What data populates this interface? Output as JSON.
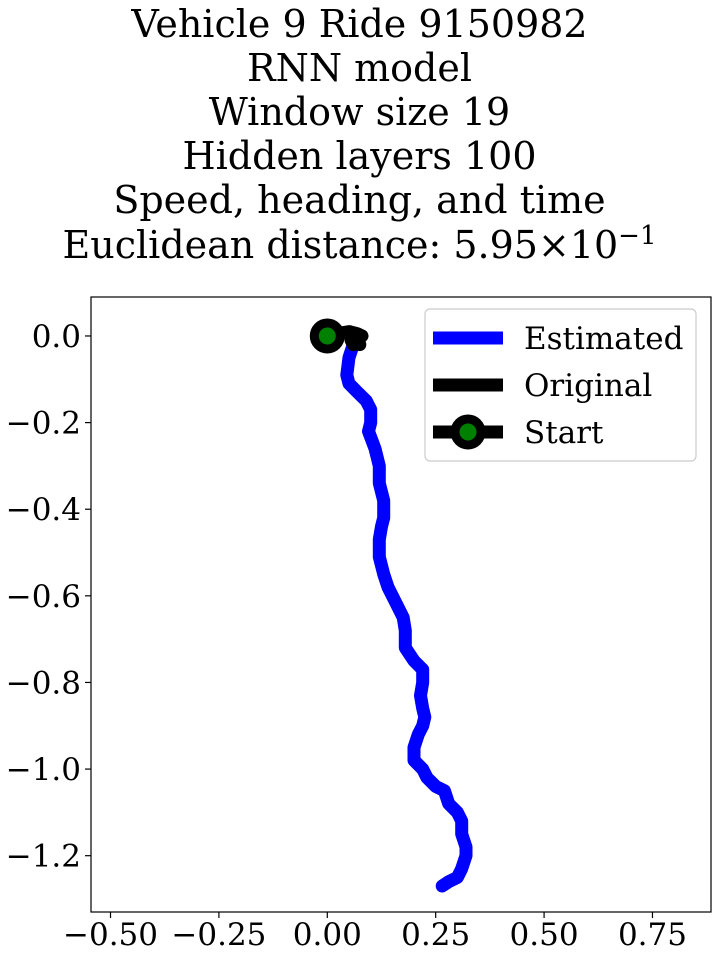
{
  "title": {
    "line1": "Vehicle 9 Ride 9150982",
    "line2": "RNN model",
    "line3": "Window size 19",
    "line4": "Hidden layers 100",
    "line5": "Speed, heading, and time",
    "line6_prefix": "Euclidean distance: 5.95",
    "line6_times": "×",
    "line6_base": "10",
    "line6_exp": "−1"
  },
  "chart_data": {
    "type": "line",
    "xlim": [
      -0.545,
      0.885
    ],
    "ylim": [
      -1.33,
      0.09
    ],
    "xticks": [
      -0.5,
      -0.25,
      0.0,
      0.25,
      0.5,
      0.75
    ],
    "xtick_labels": [
      "−0.50",
      "−0.25",
      "0.00",
      "0.25",
      "0.50",
      "0.75"
    ],
    "yticks": [
      0.0,
      -0.2,
      -0.4,
      -0.6,
      -0.8,
      -1.0,
      -1.2
    ],
    "ytick_labels": [
      "0.0",
      "−0.2",
      "−0.4",
      "−0.6",
      "−0.8",
      "−1.0",
      "−1.2"
    ],
    "grid": false,
    "legend_position": "top-right",
    "series": [
      {
        "name": "Estimated",
        "color": "#0000ff",
        "x": [
          0.06,
          0.05,
          0.045,
          0.05,
          0.07,
          0.09,
          0.1,
          0.1,
          0.095,
          0.11,
          0.12,
          0.12,
          0.13,
          0.13,
          0.125,
          0.12,
          0.12,
          0.13,
          0.14,
          0.16,
          0.175,
          0.18,
          0.18,
          0.2,
          0.22,
          0.22,
          0.215,
          0.22,
          0.225,
          0.22,
          0.21,
          0.2,
          0.2,
          0.22,
          0.23,
          0.25,
          0.27,
          0.28,
          0.3,
          0.31,
          0.31,
          0.32,
          0.32,
          0.31,
          0.3,
          0.28,
          0.265
        ],
        "y": [
          -0.02,
          -0.05,
          -0.09,
          -0.11,
          -0.13,
          -0.15,
          -0.17,
          -0.2,
          -0.22,
          -0.26,
          -0.3,
          -0.34,
          -0.38,
          -0.42,
          -0.44,
          -0.47,
          -0.51,
          -0.55,
          -0.58,
          -0.62,
          -0.65,
          -0.68,
          -0.72,
          -0.75,
          -0.77,
          -0.8,
          -0.83,
          -0.86,
          -0.88,
          -0.9,
          -0.92,
          -0.95,
          -0.98,
          -1.0,
          -1.02,
          -1.04,
          -1.05,
          -1.08,
          -1.1,
          -1.12,
          -1.15,
          -1.18,
          -1.2,
          -1.23,
          -1.25,
          -1.26,
          -1.27
        ]
      },
      {
        "name": "Original",
        "color": "#000000",
        "x": [
          0.0,
          0.02,
          0.05,
          0.07,
          0.08,
          0.07,
          0.06,
          0.055,
          0.06,
          0.07,
          0.075
        ],
        "y": [
          0.0,
          0.005,
          0.01,
          0.005,
          0.0,
          -0.01,
          -0.02,
          -0.01,
          0.0,
          -0.01,
          -0.02
        ]
      }
    ],
    "start": {
      "name": "Start",
      "x": 0.0,
      "y": 0.0,
      "edge_color": "#000000",
      "face_color": "#008000"
    }
  }
}
